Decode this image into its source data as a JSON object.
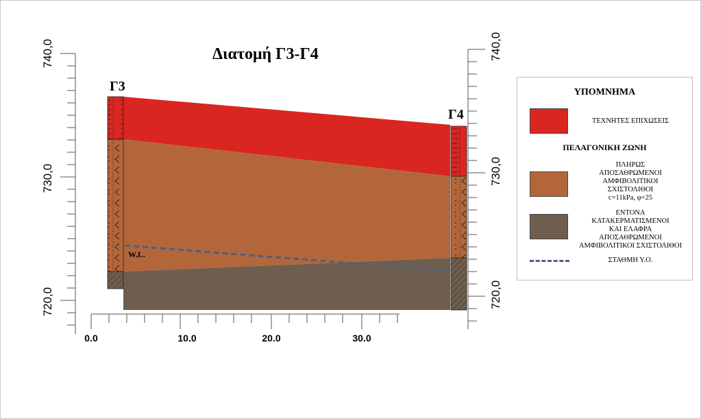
{
  "title": "Διατομή Γ3-Γ4",
  "boreholes": {
    "left": "Γ3",
    "right": "Γ4"
  },
  "axis_left": {
    "labels": [
      "740,0",
      "730,0",
      "720,0"
    ]
  },
  "axis_right": {
    "labels": [
      "740,0",
      "730,0",
      "720,0"
    ]
  },
  "axis_x": {
    "labels": [
      "0.0",
      "10.0",
      "20.0",
      "30.0"
    ]
  },
  "water_label": "W.L.",
  "legend": {
    "title": "ΥΠΟΜΝΗΜΑ",
    "fill_label": "ΤΕΧΝΗΤΕΣ ΕΠΙΧΩΣΕΙΣ",
    "zone_label": "ΠΕΛΑΓΟΝΙΚΗ ΖΩΝΗ",
    "schist_lines": [
      "ΠΛΗΡΩΣ",
      "ΑΠΟΣΑΘΡΩΜΕΝΟΙ",
      "ΑΜΦΙΒΟΛΙΤΙΚΟΙ",
      "ΣΧΙΣΤΟΛΙΘΟΙ",
      "c=11kPa, φ=25"
    ],
    "fractured_lines": [
      "ΕΝΤΟΝΑ",
      "ΚΑΤΑΚΕΡΜΑΤΙΣΜΕΝΟΙ",
      "ΚΑΙ ΕΛΑΦΡΑ",
      "ΑΠΟΣΑΘΡΩΜΕΝΟΙ",
      "ΑΜΦΙΒΟΛΙΤΙΚΟΙ ΣΧΙΣΤΟΛΙΘΟΙ"
    ],
    "water_line_label": "ΣΤΑΘΜΗ Υ.Ο."
  },
  "colors": {
    "fill": "#d92620",
    "schist": "#b4663b",
    "fractured": "#6f5e4e",
    "water_line": "#4a5f86"
  }
}
